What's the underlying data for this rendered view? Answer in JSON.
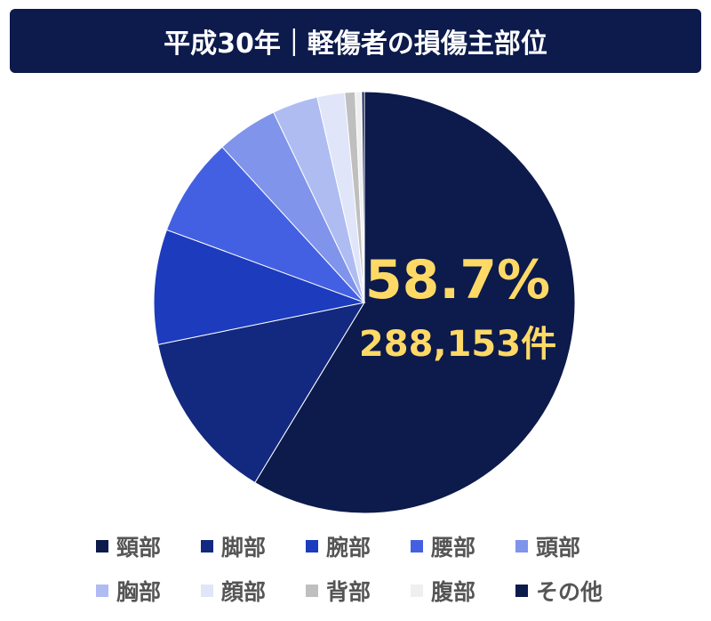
{
  "chart_data": {
    "type": "pie",
    "title": "平成30年｜軽傷者の損傷主部位",
    "start": "top",
    "direction": "clockwise",
    "categories": [
      "頸部",
      "脚部",
      "腕部",
      "腰部",
      "頭部",
      "胸部",
      "顔部",
      "背部",
      "腹部",
      "その他"
    ],
    "values": [
      58.7,
      13.1,
      8.8,
      7.6,
      4.7,
      3.5,
      2.1,
      0.8,
      0.5,
      0.2
    ],
    "colors": [
      "#0c1a4c",
      "#13297f",
      "#1c3bbd",
      "#4460e2",
      "#7f94ea",
      "#aebcf2",
      "#e0e5f9",
      "#bfbfbf",
      "#efefef",
      "#0c1a4c"
    ],
    "annotation": {
      "percent": "58.7%",
      "count": "288,153件",
      "color": "#ffd966"
    },
    "legend_position": "bottom"
  }
}
